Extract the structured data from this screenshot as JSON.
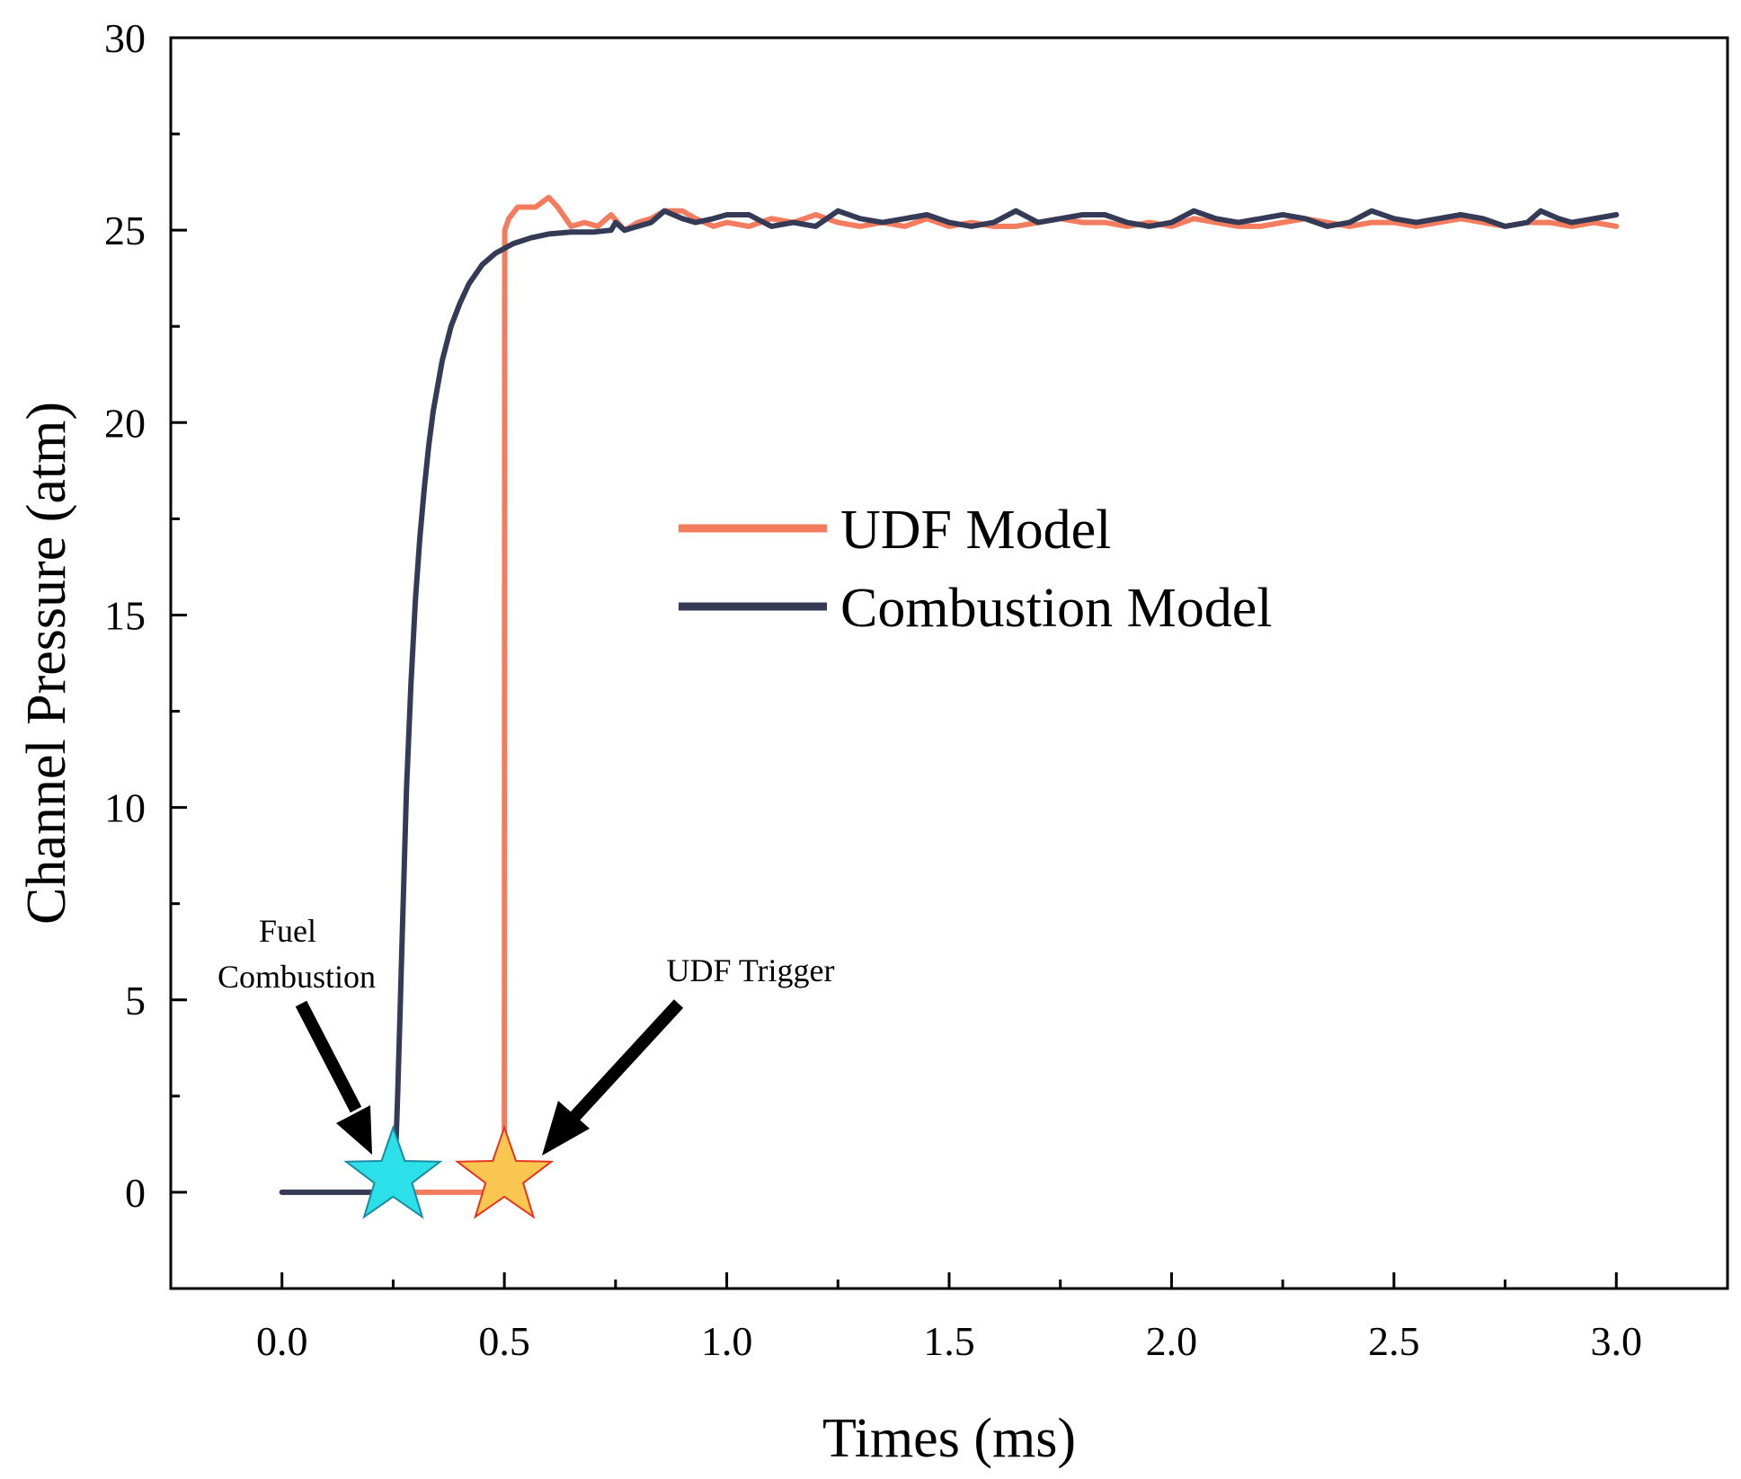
{
  "chart_data": {
    "type": "line",
    "title": "",
    "xlabel": "Times (ms)",
    "ylabel": "Channel Pressure (atm)",
    "xlim": [
      -0.25,
      3.25
    ],
    "ylim": [
      -2.5,
      30
    ],
    "x_ticks": [
      0.0,
      0.5,
      1.0,
      1.5,
      2.0,
      2.5,
      3.0
    ],
    "x_tick_labels": [
      "0.0",
      "0.5",
      "1.0",
      "1.5",
      "2.0",
      "2.5",
      "3.0"
    ],
    "y_ticks": [
      0,
      5,
      10,
      15,
      20,
      25,
      30
    ],
    "y_tick_labels": [
      "0",
      "5",
      "10",
      "15",
      "20",
      "25",
      "30"
    ],
    "grid": false,
    "legend_position": "center-right",
    "series": [
      {
        "name": "UDF Model",
        "color": "#F47C5E",
        "points": [
          [
            0.0,
            0
          ],
          [
            0.499,
            0
          ],
          [
            0.5,
            0
          ],
          [
            0.501,
            25.0
          ],
          [
            0.51,
            25.3
          ],
          [
            0.53,
            25.6
          ],
          [
            0.57,
            25.6
          ],
          [
            0.6,
            25.85
          ],
          [
            0.62,
            25.6
          ],
          [
            0.65,
            25.1
          ],
          [
            0.68,
            25.2
          ],
          [
            0.71,
            25.1
          ],
          [
            0.74,
            25.4
          ],
          [
            0.77,
            25.0
          ],
          [
            0.8,
            25.2
          ],
          [
            0.83,
            25.3
          ],
          [
            0.86,
            25.5
          ],
          [
            0.9,
            25.5
          ],
          [
            0.93,
            25.3
          ],
          [
            0.97,
            25.1
          ],
          [
            1.0,
            25.2
          ],
          [
            1.05,
            25.1
          ],
          [
            1.1,
            25.3
          ],
          [
            1.15,
            25.2
          ],
          [
            1.2,
            25.4
          ],
          [
            1.25,
            25.2
          ],
          [
            1.3,
            25.1
          ],
          [
            1.35,
            25.2
          ],
          [
            1.4,
            25.1
          ],
          [
            1.45,
            25.3
          ],
          [
            1.5,
            25.1
          ],
          [
            1.55,
            25.2
          ],
          [
            1.6,
            25.1
          ],
          [
            1.65,
            25.1
          ],
          [
            1.7,
            25.2
          ],
          [
            1.75,
            25.3
          ],
          [
            1.8,
            25.2
          ],
          [
            1.85,
            25.2
          ],
          [
            1.9,
            25.1
          ],
          [
            1.95,
            25.2
          ],
          [
            2.0,
            25.1
          ],
          [
            2.05,
            25.3
          ],
          [
            2.1,
            25.2
          ],
          [
            2.15,
            25.1
          ],
          [
            2.2,
            25.1
          ],
          [
            2.25,
            25.2
          ],
          [
            2.3,
            25.3
          ],
          [
            2.35,
            25.2
          ],
          [
            2.4,
            25.1
          ],
          [
            2.45,
            25.2
          ],
          [
            2.5,
            25.2
          ],
          [
            2.55,
            25.1
          ],
          [
            2.6,
            25.2
          ],
          [
            2.65,
            25.3
          ],
          [
            2.7,
            25.2
          ],
          [
            2.75,
            25.1
          ],
          [
            2.8,
            25.2
          ],
          [
            2.85,
            25.2
          ],
          [
            2.9,
            25.1
          ],
          [
            2.95,
            25.2
          ],
          [
            3.0,
            25.1
          ]
        ]
      },
      {
        "name": "Combustion Model",
        "color": "#353A56",
        "points": [
          [
            0.0,
            0
          ],
          [
            0.25,
            0
          ],
          [
            0.255,
            0.8
          ],
          [
            0.26,
            2.5
          ],
          [
            0.265,
            4.5
          ],
          [
            0.27,
            6.5
          ],
          [
            0.275,
            8.5
          ],
          [
            0.28,
            10.5
          ],
          [
            0.29,
            13.2
          ],
          [
            0.3,
            15.4
          ],
          [
            0.31,
            17.0
          ],
          [
            0.32,
            18.3
          ],
          [
            0.33,
            19.4
          ],
          [
            0.34,
            20.3
          ],
          [
            0.36,
            21.6
          ],
          [
            0.38,
            22.5
          ],
          [
            0.4,
            23.1
          ],
          [
            0.42,
            23.6
          ],
          [
            0.45,
            24.1
          ],
          [
            0.48,
            24.4
          ],
          [
            0.52,
            24.65
          ],
          [
            0.56,
            24.8
          ],
          [
            0.6,
            24.9
          ],
          [
            0.65,
            24.95
          ],
          [
            0.7,
            24.95
          ],
          [
            0.74,
            25.0
          ],
          [
            0.75,
            25.2
          ],
          [
            0.77,
            25.0
          ],
          [
            0.8,
            25.1
          ],
          [
            0.83,
            25.2
          ],
          [
            0.86,
            25.5
          ],
          [
            0.9,
            25.3
          ],
          [
            0.93,
            25.2
          ],
          [
            0.97,
            25.3
          ],
          [
            1.0,
            25.4
          ],
          [
            1.05,
            25.4
          ],
          [
            1.1,
            25.1
          ],
          [
            1.15,
            25.2
          ],
          [
            1.2,
            25.1
          ],
          [
            1.25,
            25.5
          ],
          [
            1.3,
            25.3
          ],
          [
            1.35,
            25.2
          ],
          [
            1.4,
            25.3
          ],
          [
            1.45,
            25.4
          ],
          [
            1.5,
            25.2
          ],
          [
            1.55,
            25.1
          ],
          [
            1.6,
            25.2
          ],
          [
            1.65,
            25.5
          ],
          [
            1.7,
            25.2
          ],
          [
            1.75,
            25.3
          ],
          [
            1.8,
            25.4
          ],
          [
            1.85,
            25.4
          ],
          [
            1.9,
            25.2
          ],
          [
            1.95,
            25.1
          ],
          [
            2.0,
            25.2
          ],
          [
            2.05,
            25.5
          ],
          [
            2.1,
            25.3
          ],
          [
            2.15,
            25.2
          ],
          [
            2.2,
            25.3
          ],
          [
            2.25,
            25.4
          ],
          [
            2.3,
            25.3
          ],
          [
            2.35,
            25.1
          ],
          [
            2.4,
            25.2
          ],
          [
            2.45,
            25.5
          ],
          [
            2.5,
            25.3
          ],
          [
            2.55,
            25.2
          ],
          [
            2.6,
            25.3
          ],
          [
            2.65,
            25.4
          ],
          [
            2.7,
            25.3
          ],
          [
            2.75,
            25.1
          ],
          [
            2.8,
            25.2
          ],
          [
            2.83,
            25.5
          ],
          [
            2.87,
            25.3
          ],
          [
            2.9,
            25.2
          ],
          [
            2.95,
            25.3
          ],
          [
            3.0,
            25.4
          ]
        ]
      }
    ],
    "annotations": [
      {
        "label_lines": [
          "Fuel",
          "Combustion"
        ],
        "marker_x": 0.25,
        "marker_y": 0.4,
        "marker": "star",
        "fill": "#2BE0E8",
        "stroke": "#1A8AA0"
      },
      {
        "label_lines": [
          "UDF Trigger"
        ],
        "marker_x": 0.5,
        "marker_y": 0.4,
        "marker": "star",
        "fill": "#F9C74F",
        "stroke": "#E8331F"
      }
    ]
  }
}
